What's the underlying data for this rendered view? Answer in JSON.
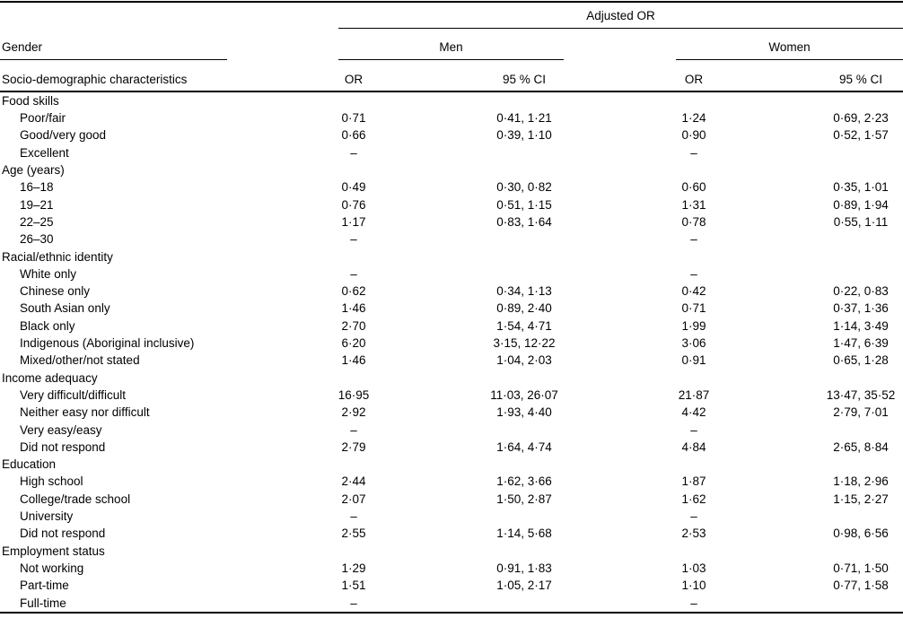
{
  "colors": {
    "text": "#000000",
    "rule": "#000000",
    "background": "#ffffff"
  },
  "table": {
    "header": {
      "adjusted_or_label": "Adjusted OR",
      "gender_label": "Gender",
      "men_label": "Men",
      "women_label": "Women",
      "row_label_header": "Socio-demographic characteristics",
      "or_label": "OR",
      "ci_label": "95 % CI"
    },
    "missing_marker": "–",
    "sections": [
      {
        "label": "Food skills",
        "rows": [
          {
            "label": "Poor/fair",
            "men_or": "0·71",
            "men_ci": "0·41, 1·21",
            "women_or": "1·24",
            "women_ci": "0·69, 2·23"
          },
          {
            "label": "Good/very good",
            "men_or": "0·66",
            "men_ci": "0·39, 1·10",
            "women_or": "0·90",
            "women_ci": "0·52, 1·57"
          },
          {
            "label": "Excellent",
            "men_or": "–",
            "men_ci": "",
            "women_or": "–",
            "women_ci": ""
          }
        ]
      },
      {
        "label": "Age (years)",
        "rows": [
          {
            "label": "16–18",
            "men_or": "0·49",
            "men_ci": "0·30, 0·82",
            "women_or": "0·60",
            "women_ci": "0·35, 1·01"
          },
          {
            "label": "19–21",
            "men_or": "0·76",
            "men_ci": "0·51, 1·15",
            "women_or": "1·31",
            "women_ci": "0·89, 1·94"
          },
          {
            "label": "22–25",
            "men_or": "1·17",
            "men_ci": "0·83, 1·64",
            "women_or": "0·78",
            "women_ci": "0·55, 1·11"
          },
          {
            "label": "26–30",
            "men_or": "–",
            "men_ci": "",
            "women_or": "–",
            "women_ci": ""
          }
        ]
      },
      {
        "label": "Racial/ethnic identity",
        "rows": [
          {
            "label": "White only",
            "men_or": "–",
            "men_ci": "",
            "women_or": "–",
            "women_ci": ""
          },
          {
            "label": "Chinese only",
            "men_or": "0·62",
            "men_ci": "0·34, 1·13",
            "women_or": "0·42",
            "women_ci": "0·22, 0·83"
          },
          {
            "label": "South Asian only",
            "men_or": "1·46",
            "men_ci": "0·89, 2·40",
            "women_or": "0·71",
            "women_ci": "0·37, 1·36"
          },
          {
            "label": "Black only",
            "men_or": "2·70",
            "men_ci": "1·54, 4·71",
            "women_or": "1·99",
            "women_ci": "1·14, 3·49"
          },
          {
            "label": "Indigenous (Aboriginal inclusive)",
            "men_or": "6·20",
            "men_ci": "3·15, 12·22",
            "women_or": "3·06",
            "women_ci": "1·47, 6·39"
          },
          {
            "label": "Mixed/other/not stated",
            "men_or": "1·46",
            "men_ci": "1·04, 2·03",
            "women_or": "0·91",
            "women_ci": "0·65, 1·28"
          }
        ]
      },
      {
        "label": "Income adequacy",
        "rows": [
          {
            "label": "Very difficult/difficult",
            "men_or": "16·95",
            "men_ci": "11·03, 26·07",
            "women_or": "21·87",
            "women_ci": "13·47, 35·52"
          },
          {
            "label": "Neither easy nor difficult",
            "men_or": "2·92",
            "men_ci": "1·93, 4·40",
            "women_or": "4·42",
            "women_ci": "2·79, 7·01"
          },
          {
            "label": "Very easy/easy",
            "men_or": "–",
            "men_ci": "",
            "women_or": "–",
            "women_ci": ""
          },
          {
            "label": "Did not respond",
            "men_or": "2·79",
            "men_ci": "1·64, 4·74",
            "women_or": "4·84",
            "women_ci": "2·65, 8·84"
          }
        ]
      },
      {
        "label": "Education",
        "rows": [
          {
            "label": "High school",
            "men_or": "2·44",
            "men_ci": "1·62, 3·66",
            "women_or": "1·87",
            "women_ci": "1·18, 2·96"
          },
          {
            "label": "College/trade school",
            "men_or": "2·07",
            "men_ci": "1·50, 2·87",
            "women_or": "1·62",
            "women_ci": "1·15, 2·27"
          },
          {
            "label": "University",
            "men_or": "–",
            "men_ci": "",
            "women_or": "–",
            "women_ci": ""
          },
          {
            "label": "Did not respond",
            "men_or": "2·55",
            "men_ci": "1·14, 5·68",
            "women_or": "2·53",
            "women_ci": "0·98, 6·56"
          }
        ]
      },
      {
        "label": "Employment status",
        "rows": [
          {
            "label": "Not working",
            "men_or": "1·29",
            "men_ci": "0·91, 1·83",
            "women_or": "1·03",
            "women_ci": "0·71, 1·50"
          },
          {
            "label": "Part-time",
            "men_or": "1·51",
            "men_ci": "1·05, 2·17",
            "women_or": "1·10",
            "women_ci": "0·77, 1·58"
          },
          {
            "label": "Full-time",
            "men_or": "–",
            "men_ci": "",
            "women_or": "–",
            "women_ci": ""
          }
        ]
      }
    ]
  }
}
